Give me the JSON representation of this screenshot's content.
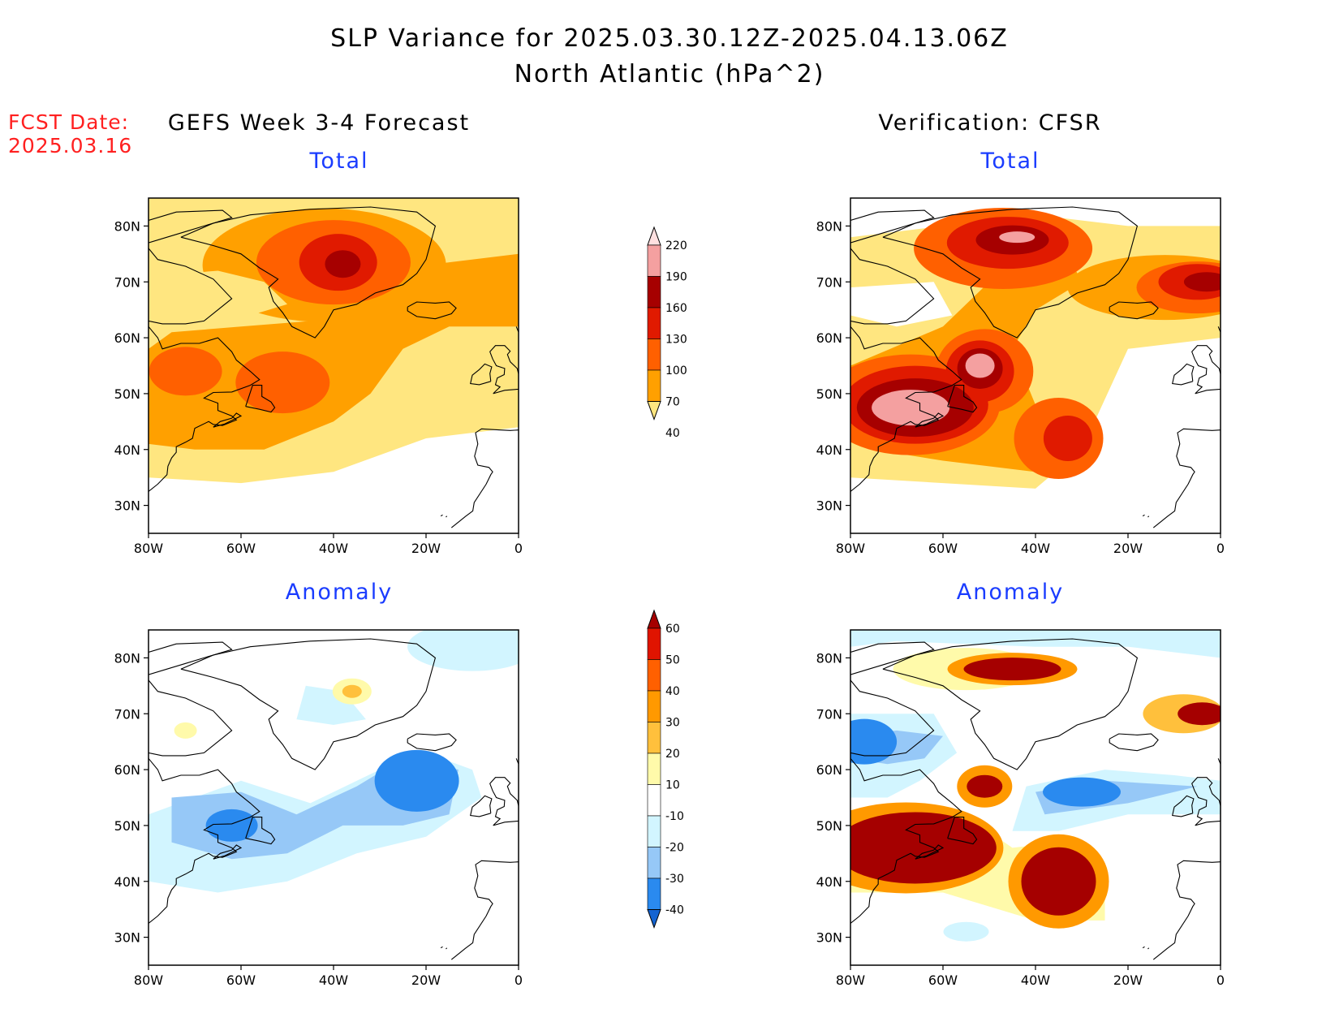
{
  "title": {
    "line1": "SLP Variance for 2025.03.30.12Z-2025.04.13.06Z",
    "line2": "North Atlantic (hPa^2)"
  },
  "forecast": {
    "label": "FCST Date:",
    "date": "2025.03.16"
  },
  "columns": {
    "left": "GEFS Week 3-4 Forecast",
    "right": "Verification: CFSR"
  },
  "panels": {
    "total": "Total",
    "anomaly": "Anomaly"
  },
  "axes": {
    "lat_labels": [
      "80N",
      "70N",
      "60N",
      "50N",
      "40N",
      "30N"
    ],
    "lon_labels": [
      "80W",
      "60W",
      "40W",
      "20W",
      "0"
    ]
  },
  "colorbars": {
    "total": {
      "levels": [
        "40",
        "70",
        "100",
        "130",
        "160",
        "190",
        "220"
      ],
      "colors": [
        "#ffe680",
        "#ffa000",
        "#ff6000",
        "#e01a00",
        "#a60000",
        "#f4a0a0",
        "#ffe0e0"
      ]
    },
    "anomaly": {
      "levels": [
        "-40",
        "-30",
        "-20",
        "-10",
        "10",
        "20",
        "30",
        "40",
        "50",
        "60"
      ],
      "colors": [
        "#1464d2",
        "#2a8aef",
        "#96c8f7",
        "#d2f5ff",
        "#ffffff",
        "#fffaaa",
        "#ffc03c",
        "#ff9900",
        "#ff6000",
        "#e01400",
        "#a50000"
      ]
    }
  },
  "chart_data": [
    {
      "type": "heatmap",
      "name_printed": "GEFS Week 3-4 Forecast — Total",
      "lon_range": [
        -80,
        0
      ],
      "lat_range": [
        25,
        85
      ],
      "features": [
        {
          "level": "40-70",
          "region": "broad band over Greenland, Labrador Sea and NW Atlantic"
        },
        {
          "level": "70-100",
          "region": "central North Atlantic to Iceland"
        },
        {
          "level": "100-130",
          "region": "Labrador / Newfoundland, E Greenland"
        },
        {
          "level": "130-160",
          "region": "E Greenland near 73N 40W"
        },
        {
          "level": "160-190",
          "region": "core near 74N 38W"
        }
      ]
    },
    {
      "type": "heatmap",
      "name_printed": "Verification: CFSR — Total",
      "lon_range": [
        -80,
        0
      ],
      "lat_range": [
        25,
        85
      ],
      "features": [
        {
          "level": "190-220",
          "region": "Gulf of St. Lawrence ~47N 68W and ~55N 52W"
        },
        {
          "level": "160-190",
          "region": "NE Greenland ~78N 45W, Norwegian Sea ~70N 5W"
        },
        {
          "level": "130-160",
          "region": "mid-Atlantic ~42N 35W"
        }
      ]
    },
    {
      "type": "heatmap",
      "name_printed": "GEFS Week 3-4 Forecast — Anomaly",
      "lon_range": [
        -80,
        0
      ],
      "lat_range": [
        25,
        85
      ],
      "features": [
        {
          "level": "-40 to -30",
          "region": "~60N 22W, Gulf of St. Lawrence ~50N 60W"
        },
        {
          "level": "-20 to -10",
          "region": "broad NW Atlantic"
        },
        {
          "level": "20-30",
          "region": "E Greenland ~74N 37W"
        }
      ]
    },
    {
      "type": "heatmap",
      "name_printed": "Verification: CFSR — Anomaly",
      "lon_range": [
        -80,
        0
      ],
      "lat_range": [
        25,
        85
      ],
      "features": [
        {
          "level": ">60",
          "region": "NE US / Maritimes ~47N 70W, mid-Atlantic ~42N 35W, Norwegian Sea ~70N 3W, NE Greenland ~78N 45W"
        },
        {
          "level": "-40 to -30",
          "region": "~57N 30W, Baffin/Hudson ~65N 77W"
        }
      ]
    }
  ]
}
